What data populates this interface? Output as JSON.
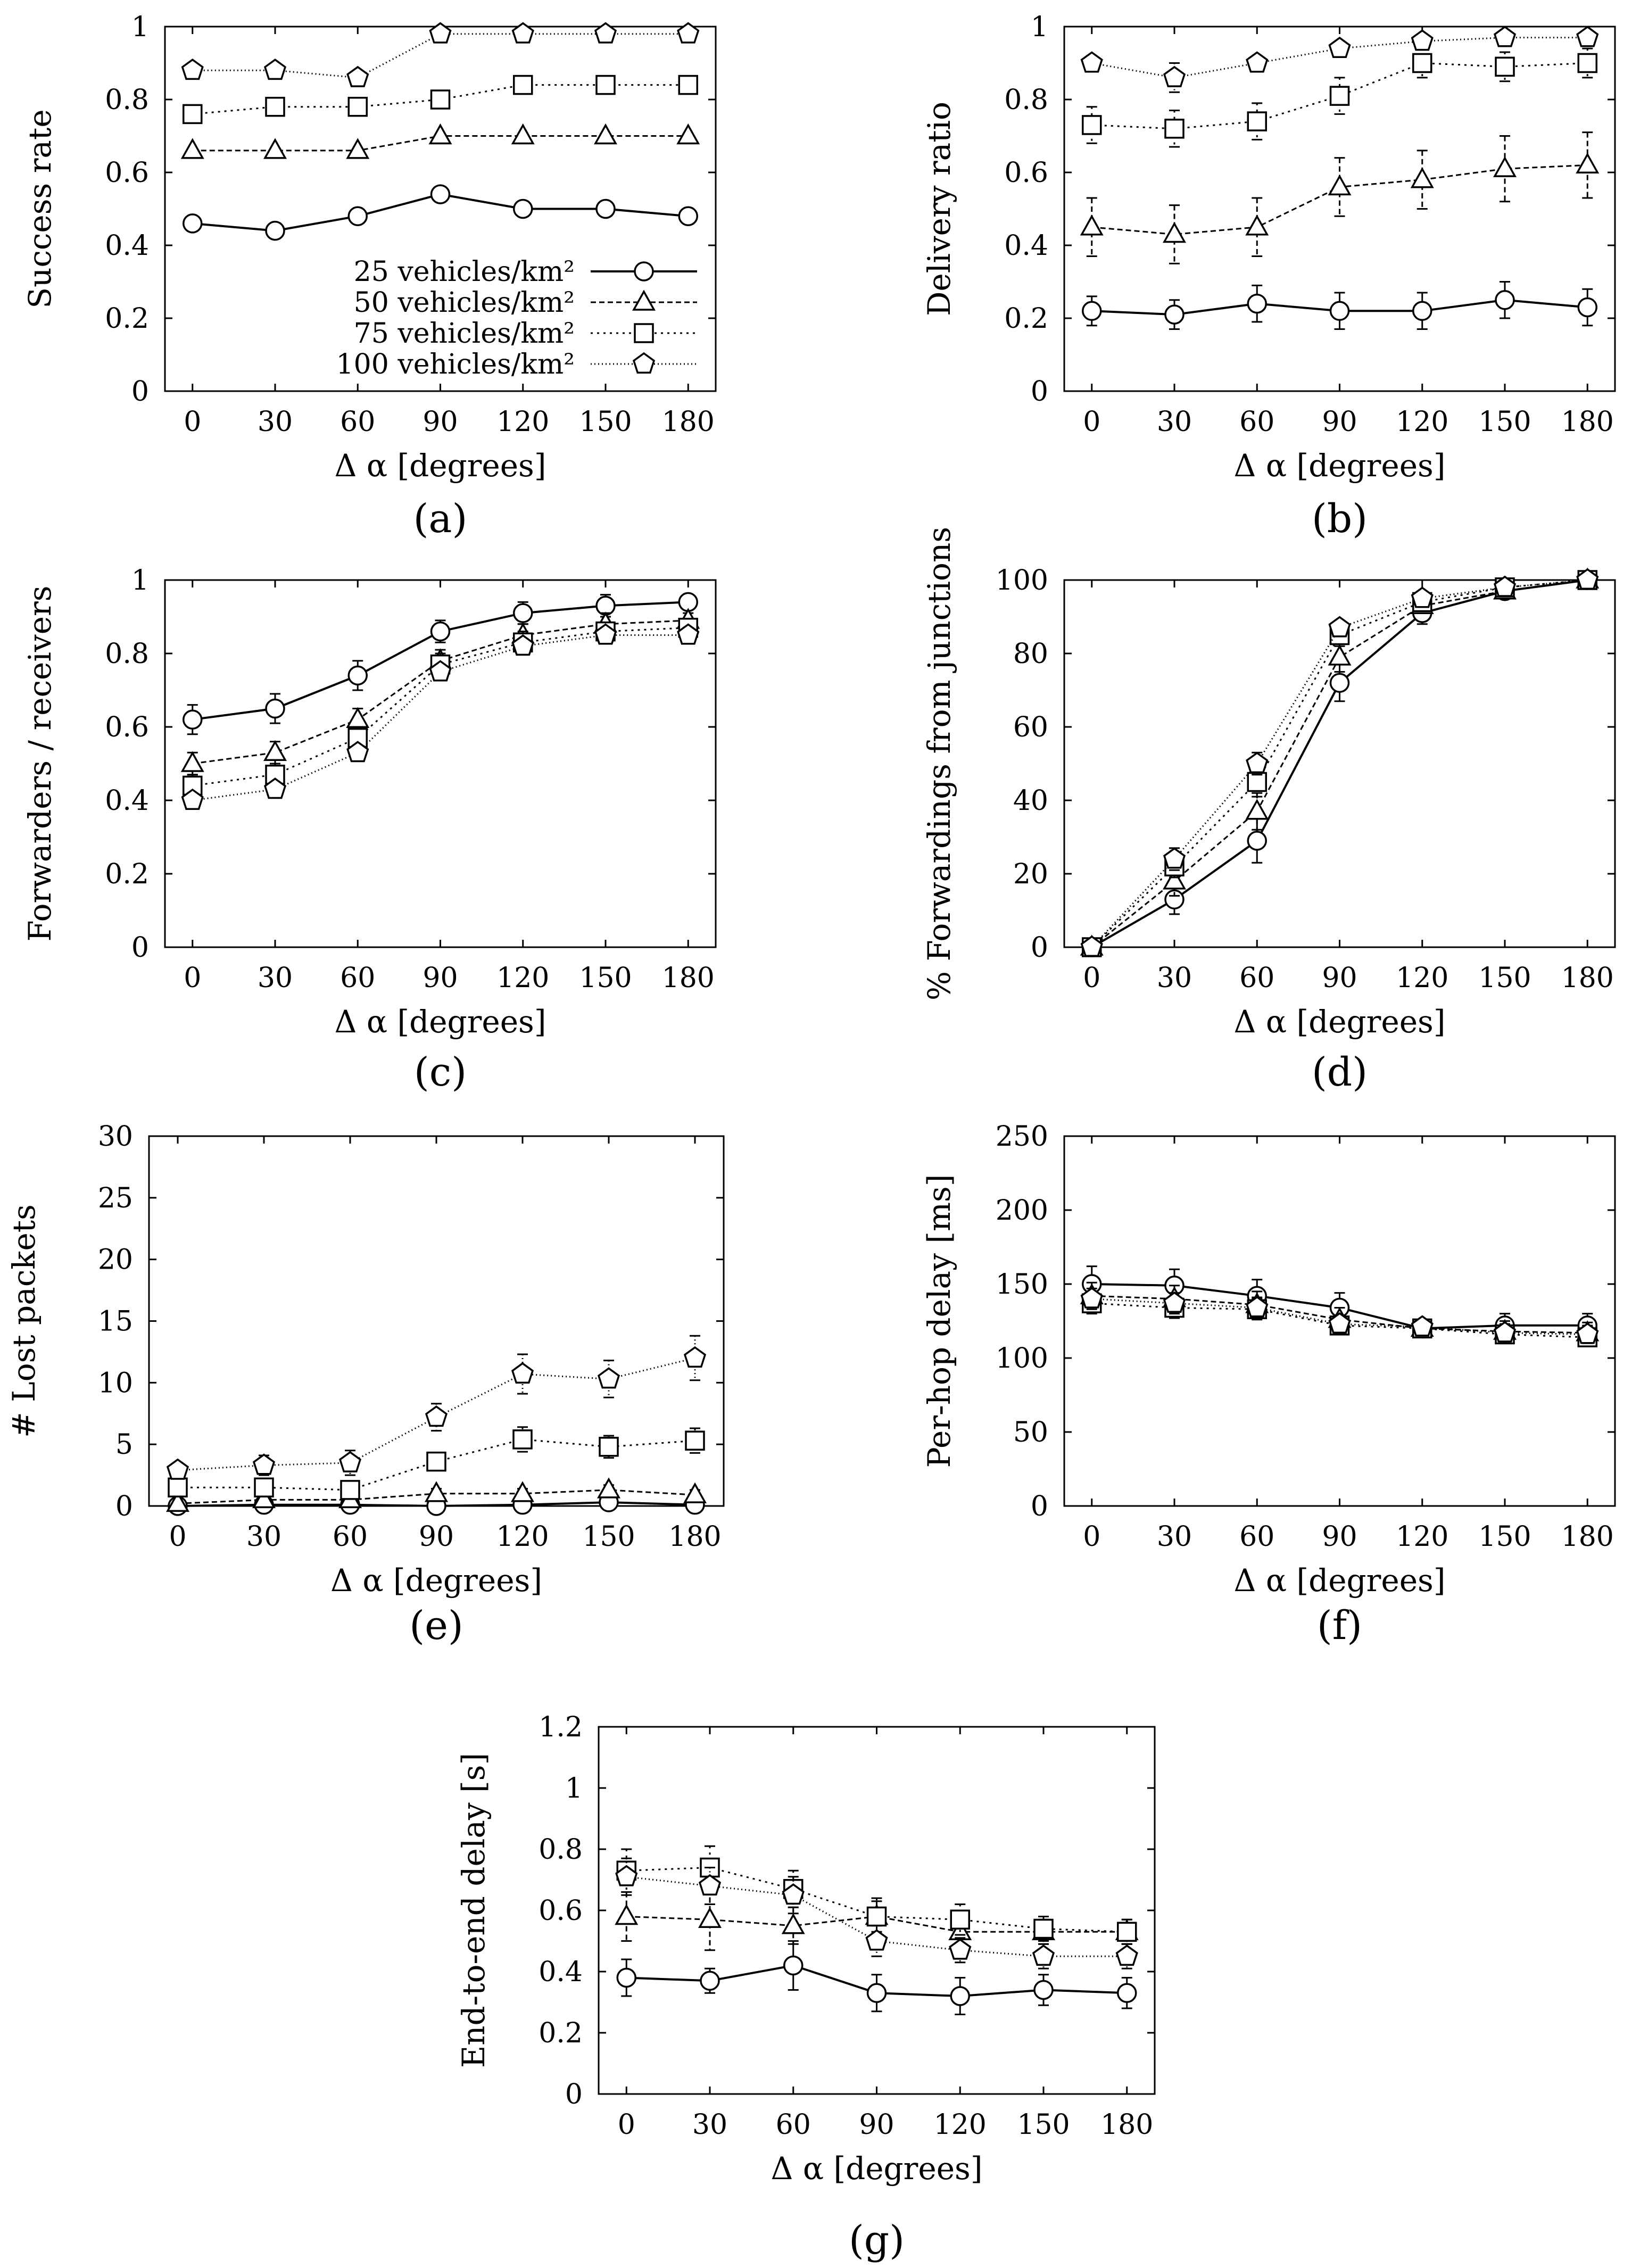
{
  "figure": {
    "series_names": [
      "25 vehicles/km²",
      "50 vehicles/km²",
      "75 vehicles/km²",
      "100 vehicles/km²"
    ],
    "marker_shapes": [
      "circle",
      "triangle",
      "square",
      "pentagon"
    ],
    "line_styles": [
      "solid",
      "dashed",
      "dotted",
      "fine-dotted"
    ]
  },
  "chart_data": [
    {
      "type": "line",
      "panel": "(a)",
      "xlabel": "Δ α [degrees]",
      "ylabel": "Success rate",
      "x": [
        0,
        30,
        60,
        90,
        120,
        150,
        180
      ],
      "xlim": [
        -10,
        190
      ],
      "ylim": [
        0,
        1
      ],
      "yticks": [
        "0",
        "0.2",
        "0.4",
        "0.6",
        "0.8",
        "1"
      ],
      "legend": "center-right",
      "series": [
        {
          "name": "25 vehicles/km²",
          "values": [
            0.46,
            0.44,
            0.48,
            0.54,
            0.5,
            0.5,
            0.48
          ]
        },
        {
          "name": "50 vehicles/km²",
          "values": [
            0.66,
            0.66,
            0.66,
            0.7,
            0.7,
            0.7,
            0.7
          ]
        },
        {
          "name": "75 vehicles/km²",
          "values": [
            0.76,
            0.78,
            0.78,
            0.8,
            0.84,
            0.84,
            0.84
          ]
        },
        {
          "name": "100 vehicles/km²",
          "values": [
            0.88,
            0.88,
            0.86,
            0.98,
            0.98,
            0.98,
            0.98
          ]
        }
      ]
    },
    {
      "type": "line",
      "panel": "(b)",
      "xlabel": "Δ α [degrees]",
      "ylabel": "Delivery ratio",
      "x": [
        0,
        30,
        60,
        90,
        120,
        150,
        180
      ],
      "xlim": [
        -10,
        190
      ],
      "ylim": [
        0,
        1
      ],
      "yticks": [
        "0",
        "0.2",
        "0.4",
        "0.6",
        "0.8",
        "1"
      ],
      "error_bars": true,
      "series": [
        {
          "name": "25 vehicles/km²",
          "values": [
            0.22,
            0.21,
            0.24,
            0.22,
            0.22,
            0.25,
            0.23
          ],
          "err": [
            0.04,
            0.04,
            0.05,
            0.05,
            0.05,
            0.05,
            0.05
          ]
        },
        {
          "name": "50 vehicles/km²",
          "values": [
            0.45,
            0.43,
            0.45,
            0.56,
            0.58,
            0.61,
            0.62
          ],
          "err": [
            0.08,
            0.08,
            0.08,
            0.08,
            0.08,
            0.09,
            0.09
          ]
        },
        {
          "name": "75 vehicles/km²",
          "values": [
            0.73,
            0.72,
            0.74,
            0.81,
            0.9,
            0.89,
            0.9
          ],
          "err": [
            0.05,
            0.05,
            0.05,
            0.05,
            0.04,
            0.04,
            0.04
          ]
        },
        {
          "name": "100 vehicles/km²",
          "values": [
            0.9,
            0.86,
            0.9,
            0.94,
            0.96,
            0.97,
            0.97
          ],
          "err": [
            0.02,
            0.04,
            0.02,
            0.02,
            0.02,
            0.02,
            0.02
          ]
        }
      ]
    },
    {
      "type": "line",
      "panel": "(c)",
      "xlabel": "Δ α [degrees]",
      "ylabel": "Forwarders / receivers",
      "x": [
        0,
        30,
        60,
        90,
        120,
        150,
        180
      ],
      "xlim": [
        -10,
        190
      ],
      "ylim": [
        0,
        1
      ],
      "yticks": [
        "0",
        "0.2",
        "0.4",
        "0.6",
        "0.8",
        "1"
      ],
      "error_bars": true,
      "series": [
        {
          "name": "25 vehicles/km²",
          "values": [
            0.62,
            0.65,
            0.74,
            0.86,
            0.91,
            0.93,
            0.94
          ],
          "err": [
            0.04,
            0.04,
            0.04,
            0.03,
            0.03,
            0.03,
            0.02
          ]
        },
        {
          "name": "50 vehicles/km²",
          "values": [
            0.5,
            0.53,
            0.62,
            0.78,
            0.85,
            0.88,
            0.89
          ],
          "err": [
            0.03,
            0.03,
            0.03,
            0.03,
            0.03,
            0.03,
            0.02
          ]
        },
        {
          "name": "75 vehicles/km²",
          "values": [
            0.44,
            0.47,
            0.57,
            0.77,
            0.83,
            0.86,
            0.87
          ],
          "err": [
            0.03,
            0.03,
            0.03,
            0.03,
            0.03,
            0.02,
            0.02
          ]
        },
        {
          "name": "100 vehicles/km²",
          "values": [
            0.4,
            0.43,
            0.53,
            0.75,
            0.82,
            0.85,
            0.85
          ],
          "err": [
            0.02,
            0.02,
            0.02,
            0.02,
            0.02,
            0.02,
            0.02
          ]
        }
      ]
    },
    {
      "type": "line",
      "panel": "(d)",
      "xlabel": "Δ α [degrees]",
      "ylabel": "% Forwardings from junctions",
      "x": [
        0,
        30,
        60,
        90,
        120,
        150,
        180
      ],
      "xlim": [
        -10,
        190
      ],
      "ylim": [
        0,
        100
      ],
      "yticks": [
        "0",
        "20",
        "40",
        "60",
        "80",
        "100"
      ],
      "error_bars": true,
      "series": [
        {
          "name": "25 vehicles/km²",
          "values": [
            0,
            13,
            29,
            72,
            91,
            97,
            100
          ],
          "err": [
            0,
            4,
            6,
            5,
            3,
            1,
            0
          ]
        },
        {
          "name": "50 vehicles/km²",
          "values": [
            0,
            18,
            37,
            79,
            93,
            97,
            100
          ],
          "err": [
            0,
            4,
            5,
            4,
            2,
            1,
            0
          ]
        },
        {
          "name": "75 vehicles/km²",
          "values": [
            0,
            22,
            45,
            85,
            94,
            98,
            100
          ],
          "err": [
            0,
            3,
            4,
            3,
            2,
            1,
            0
          ]
        },
        {
          "name": "100 vehicles/km²",
          "values": [
            0,
            24,
            50,
            87,
            95,
            98,
            100
          ],
          "err": [
            0,
            3,
            3,
            2,
            1,
            1,
            0
          ]
        }
      ]
    },
    {
      "type": "line",
      "panel": "(e)",
      "xlabel": "Δ α [degrees]",
      "ylabel": "# Lost packets",
      "x": [
        0,
        30,
        60,
        90,
        120,
        150,
        180
      ],
      "xlim": [
        -10,
        190
      ],
      "ylim": [
        0,
        30
      ],
      "yticks": [
        "0",
        "5",
        "10",
        "15",
        "20",
        "25",
        "30"
      ],
      "error_bars": true,
      "series": [
        {
          "name": "25 vehicles/km²",
          "values": [
            0.0,
            0.1,
            0.1,
            0.0,
            0.1,
            0.3,
            0.1
          ],
          "err": [
            0.1,
            0.1,
            0.1,
            0.1,
            0.1,
            0.2,
            0.1
          ]
        },
        {
          "name": "50 vehicles/km²",
          "values": [
            0.2,
            0.5,
            0.5,
            1.0,
            1.0,
            1.3,
            0.9
          ],
          "err": [
            0.2,
            0.3,
            0.3,
            0.4,
            0.4,
            0.4,
            0.4
          ]
        },
        {
          "name": "75 vehicles/km²",
          "values": [
            1.5,
            1.5,
            1.3,
            3.6,
            5.4,
            4.8,
            5.3
          ],
          "err": [
            0.5,
            0.5,
            0.5,
            0.7,
            1.0,
            0.9,
            1.0
          ]
        },
        {
          "name": "100 vehicles/km²",
          "values": [
            2.9,
            3.3,
            3.5,
            7.2,
            10.7,
            10.3,
            12.0
          ],
          "err": [
            0.6,
            0.8,
            1.0,
            1.1,
            1.6,
            1.5,
            1.8
          ]
        }
      ]
    },
    {
      "type": "line",
      "panel": "(f)",
      "xlabel": "Δ α [degrees]",
      "ylabel": "Per-hop delay [ms]",
      "x": [
        0,
        30,
        60,
        90,
        120,
        150,
        180
      ],
      "xlim": [
        -10,
        190
      ],
      "ylim": [
        0,
        250
      ],
      "yticks": [
        "0",
        "50",
        "100",
        "150",
        "200",
        "250"
      ],
      "error_bars": true,
      "series": [
        {
          "name": "25 vehicles/km²",
          "values": [
            150,
            149,
            142,
            134,
            120,
            122,
            122
          ],
          "err": [
            12,
            11,
            11,
            10,
            6,
            8,
            8
          ]
        },
        {
          "name": "50 vehicles/km²",
          "values": [
            142,
            140,
            136,
            126,
            120,
            118,
            117
          ],
          "err": [
            9,
            9,
            9,
            8,
            6,
            7,
            7
          ]
        },
        {
          "name": "75 vehicles/km²",
          "values": [
            137,
            134,
            133,
            122,
            120,
            116,
            114
          ],
          "err": [
            7,
            7,
            7,
            6,
            5,
            6,
            6
          ]
        },
        {
          "name": "100 vehicles/km²",
          "values": [
            140,
            137,
            134,
            123,
            121,
            117,
            116
          ],
          "err": [
            7,
            7,
            7,
            6,
            5,
            6,
            6
          ]
        }
      ]
    },
    {
      "type": "line",
      "panel": "(g)",
      "xlabel": "Δ α [degrees]",
      "ylabel": "End-to-end delay [s]",
      "x": [
        0,
        30,
        60,
        90,
        120,
        150,
        180
      ],
      "xlim": [
        -10,
        190
      ],
      "ylim": [
        0,
        1.2
      ],
      "yticks": [
        "0",
        "0.2",
        "0.4",
        "0.6",
        "0.8",
        "1",
        "1.2"
      ],
      "error_bars": true,
      "series": [
        {
          "name": "25 vehicles/km²",
          "values": [
            0.38,
            0.37,
            0.42,
            0.33,
            0.32,
            0.34,
            0.33
          ],
          "err": [
            0.06,
            0.04,
            0.08,
            0.06,
            0.06,
            0.05,
            0.05
          ]
        },
        {
          "name": "50 vehicles/km²",
          "values": [
            0.58,
            0.57,
            0.55,
            0.58,
            0.53,
            0.53,
            0.53
          ],
          "err": [
            0.08,
            0.1,
            0.06,
            0.05,
            0.05,
            0.04,
            0.04
          ]
        },
        {
          "name": "75 vehicles/km²",
          "values": [
            0.73,
            0.74,
            0.67,
            0.58,
            0.57,
            0.54,
            0.53
          ],
          "err": [
            0.07,
            0.07,
            0.06,
            0.06,
            0.05,
            0.04,
            0.04
          ]
        },
        {
          "name": "100 vehicles/km²",
          "values": [
            0.71,
            0.68,
            0.65,
            0.5,
            0.47,
            0.45,
            0.45
          ],
          "err": [
            0.06,
            0.06,
            0.06,
            0.05,
            0.04,
            0.04,
            0.04
          ]
        }
      ]
    }
  ]
}
